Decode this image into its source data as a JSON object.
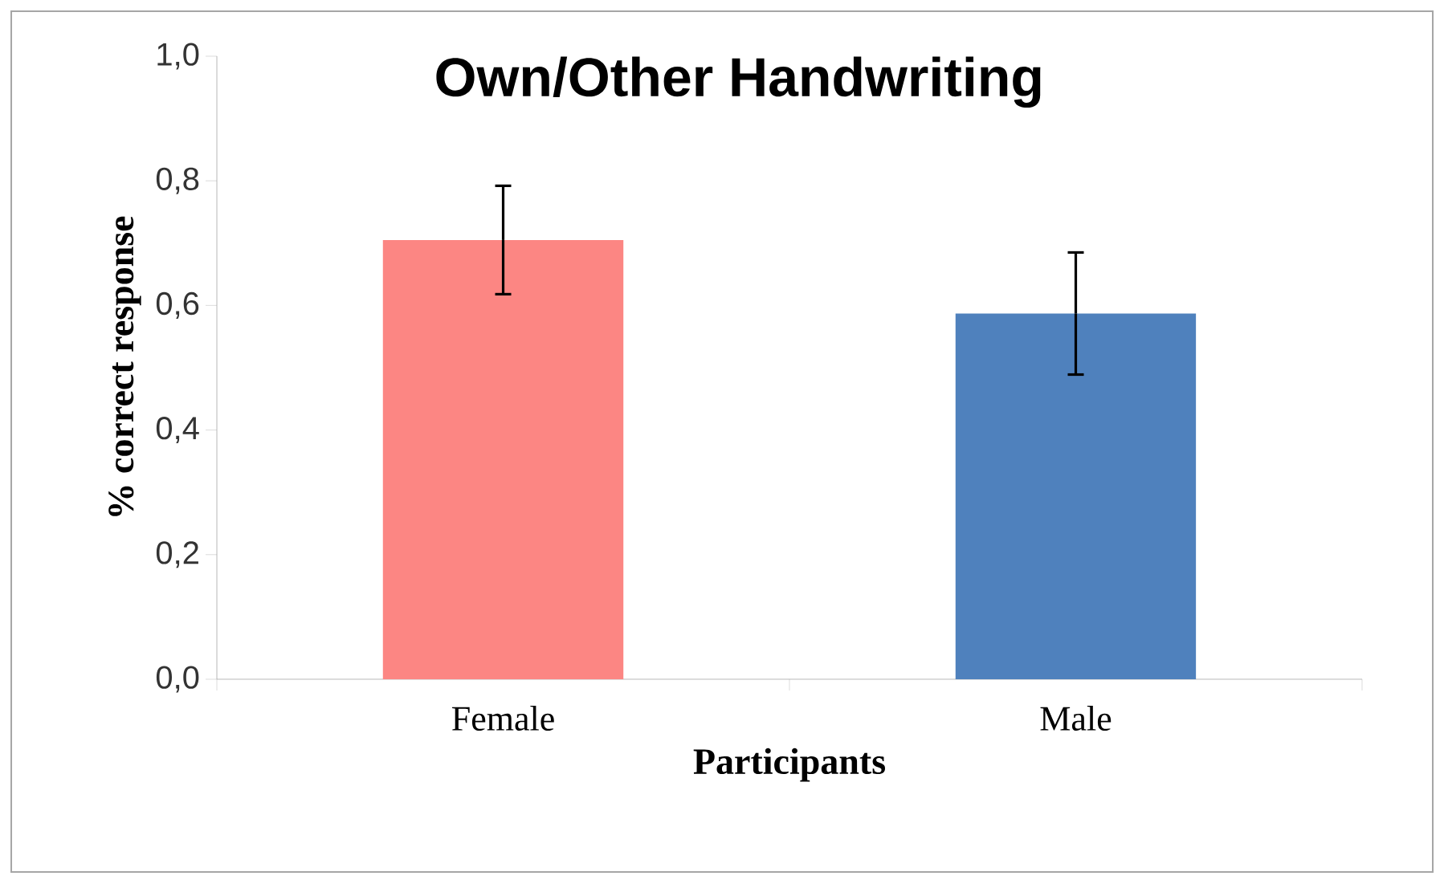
{
  "chart_data": {
    "type": "bar",
    "title": "Own/Other Handwriting",
    "xlabel": "Participants",
    "ylabel": "% correct response",
    "categories": [
      "Female",
      "Male"
    ],
    "values": [
      0.705,
      0.587
    ],
    "colors": [
      "#fc8683",
      "#4f81bd"
    ],
    "errors": [
      0.087,
      0.098
    ],
    "ylim": [
      0,
      1
    ],
    "yticks": [
      {
        "value": 0,
        "label": "0,0"
      },
      {
        "value": 0.2,
        "label": "0,2"
      },
      {
        "value": 0.4,
        "label": "0,4"
      },
      {
        "value": 0.6,
        "label": "0,6"
      },
      {
        "value": 0.8,
        "label": "0,8"
      },
      {
        "value": 1,
        "label": "1,0"
      }
    ],
    "grid": false
  }
}
